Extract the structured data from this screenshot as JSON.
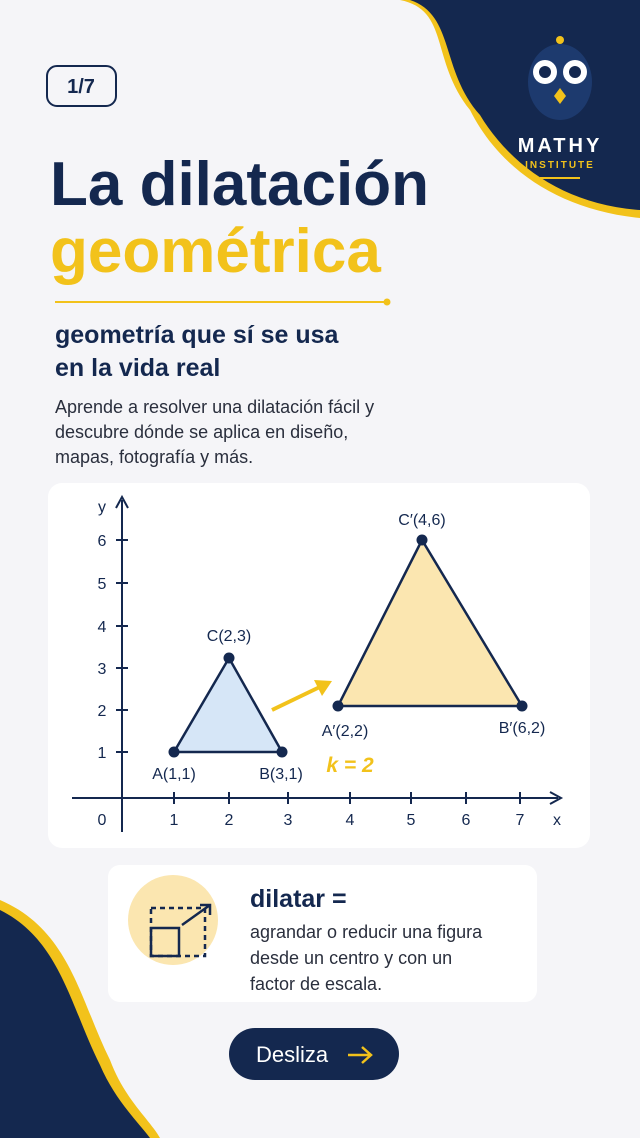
{
  "page": {
    "counter": "1/7"
  },
  "brand": {
    "name": "MATHY",
    "sub": "INSTITUTE"
  },
  "title": {
    "line1": "La dilatación",
    "line2": "geométrica"
  },
  "subtitle": [
    "geometría que sí se usa",
    "en la vida real"
  ],
  "intro": [
    "Aprende a resolver una dilatación fácil y",
    "descubre dónde se aplica en diseño,",
    "mapas, fotografía y más."
  ],
  "graph": {
    "x_label": "x",
    "y_label": "y",
    "x_ticks": [
      "0",
      "1",
      "2",
      "3",
      "4",
      "5",
      "6",
      "7"
    ],
    "y_ticks": [
      "1",
      "2",
      "3",
      "4",
      "5",
      "6"
    ],
    "points": [
      "A(1,1)",
      "B(3,1)",
      "C(2,3)",
      "A′(2,2)",
      "B′(6,2)",
      "C′(4,6)"
    ],
    "factor": "k = 2"
  },
  "definition": {
    "term": "dilatar =",
    "text": [
      "agrandar o reducir una figura",
      "desde un centro y con un",
      "factor de escala."
    ]
  },
  "button": "Desliza"
}
